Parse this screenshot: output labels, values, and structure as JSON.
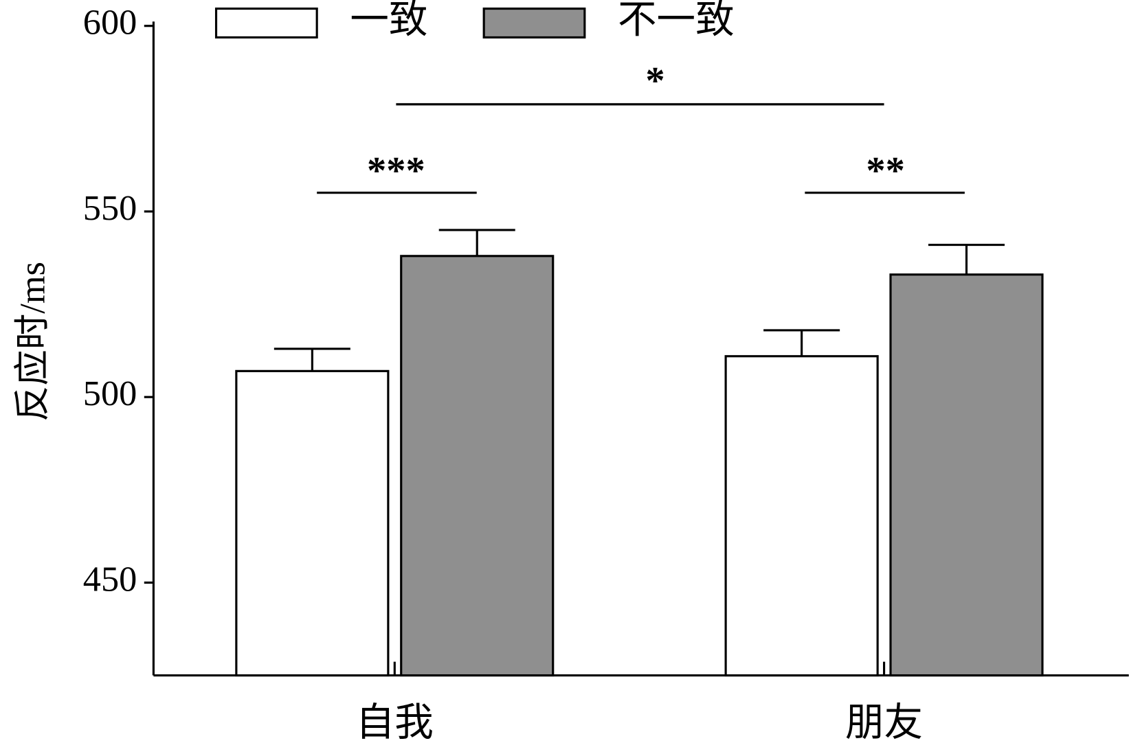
{
  "chart_data": {
    "type": "bar",
    "y_label": "反应时/ms",
    "categories": [
      "自我",
      "朋友"
    ],
    "series": [
      {
        "name": "一致",
        "color": "#ffffff",
        "values": [
          507,
          511
        ],
        "errors": [
          6,
          7
        ]
      },
      {
        "name": "不一致",
        "color": "#8f8f8f",
        "values": [
          538,
          533
        ],
        "errors": [
          7,
          8
        ]
      }
    ],
    "ylim": [
      425,
      600
    ],
    "yticks": [
      450,
      500,
      550,
      600
    ],
    "annotations": [
      "***",
      "**",
      "*"
    ]
  }
}
